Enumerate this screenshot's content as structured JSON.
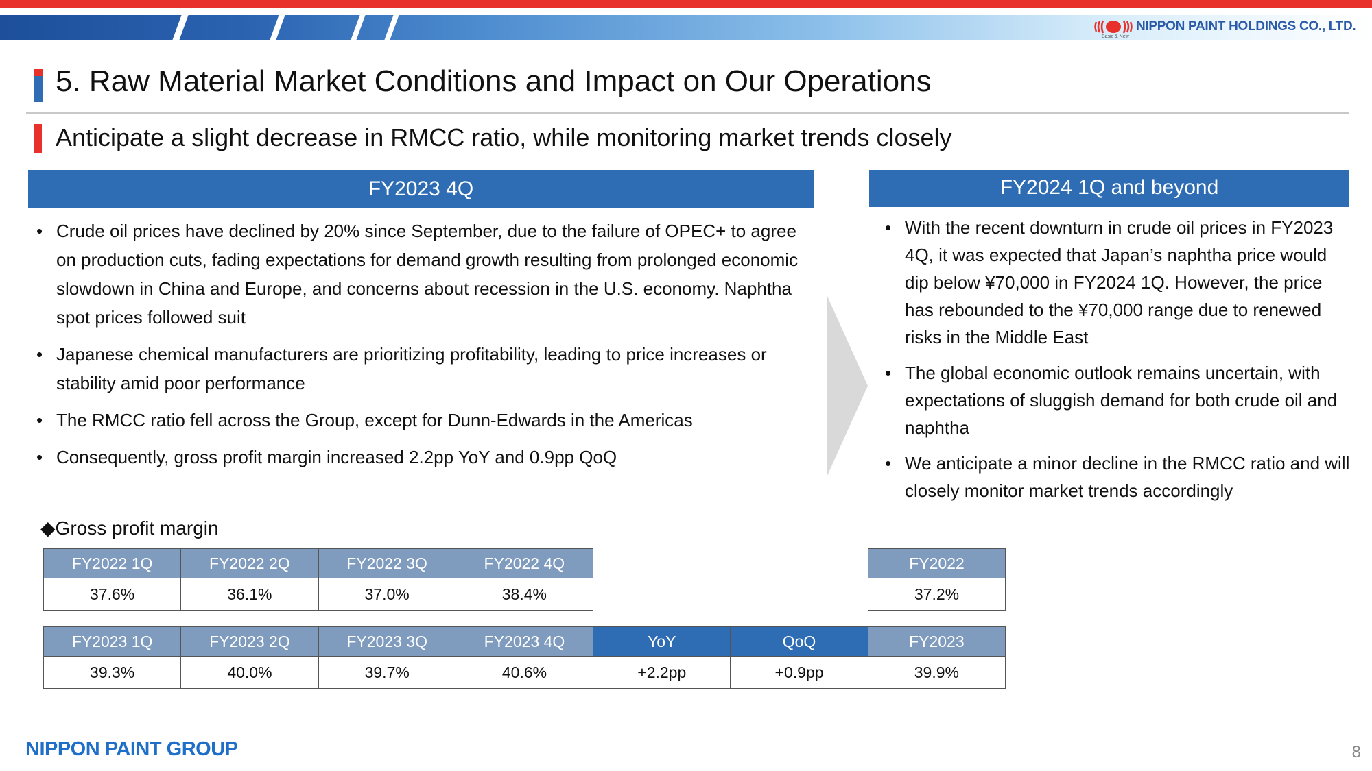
{
  "header": {
    "company_logo_text": "NIPPON PAINT HOLDINGS CO., LTD.",
    "tagline": "Basic & New",
    "colors": {
      "accent_red": "#e8312a",
      "accent_blue": "#2e6db4",
      "table_header": "#7f9bbe"
    }
  },
  "title": "5. Raw Material Market Conditions and Impact on Our Operations",
  "subtitle": "Anticipate a slight decrease in RMCC ratio, while monitoring market trends closely",
  "left_section": {
    "heading": "FY2023 4Q",
    "bullets": [
      "Crude oil prices have declined by 20% since September, due to the failure of OPEC+ to agree on production cuts, fading expectations for demand growth resulting from prolonged economic slowdown in China and Europe, and concerns about recession in the U.S. economy. Naphtha spot prices followed suit",
      "Japanese chemical manufacturers are prioritizing profitability, leading to price increases or stability amid poor performance",
      "The RMCC ratio fell across the Group, except for Dunn-Edwards in the Americas",
      "Consequently, gross profit margin increased 2.2pp YoY and 0.9pp QoQ"
    ]
  },
  "right_section": {
    "heading": "FY2024 1Q and beyond",
    "bullets": [
      "With the recent downturn in crude oil prices in FY2023 4Q, it was expected that Japan’s naphtha price would dip below ¥70,000 in FY2024 1Q. However, the price has rebounded to the ¥70,000 range due to renewed risks in the Middle East",
      "The global economic outlook remains uncertain, with expectations of sluggish demand for both crude oil and naphtha",
      "We anticipate a minor decline in the RMCC ratio and will closely monitor market trends accordingly"
    ]
  },
  "gross_profit_margin": {
    "label": "◆Gross profit margin",
    "fy2022_quarters": {
      "headers": [
        "FY2022 1Q",
        "FY2022 2Q",
        "FY2022 3Q",
        "FY2022 4Q"
      ],
      "values": [
        "37.6%",
        "36.1%",
        "37.0%",
        "38.4%"
      ]
    },
    "fy2022_total": {
      "header": "FY2022",
      "value": "37.2%"
    },
    "fy2023_quarters": {
      "headers": [
        "FY2023 1Q",
        "FY2023 2Q",
        "FY2023 3Q",
        "FY2023 4Q",
        "YoY",
        "QoQ",
        "FY2023"
      ],
      "values": [
        "39.3%",
        "40.0%",
        "39.7%",
        "40.6%",
        "+2.2pp",
        "+0.9pp",
        "39.9%"
      ]
    }
  },
  "footer": {
    "group_logo_text": "NIPPON PAINT GROUP",
    "page_number": "8"
  }
}
